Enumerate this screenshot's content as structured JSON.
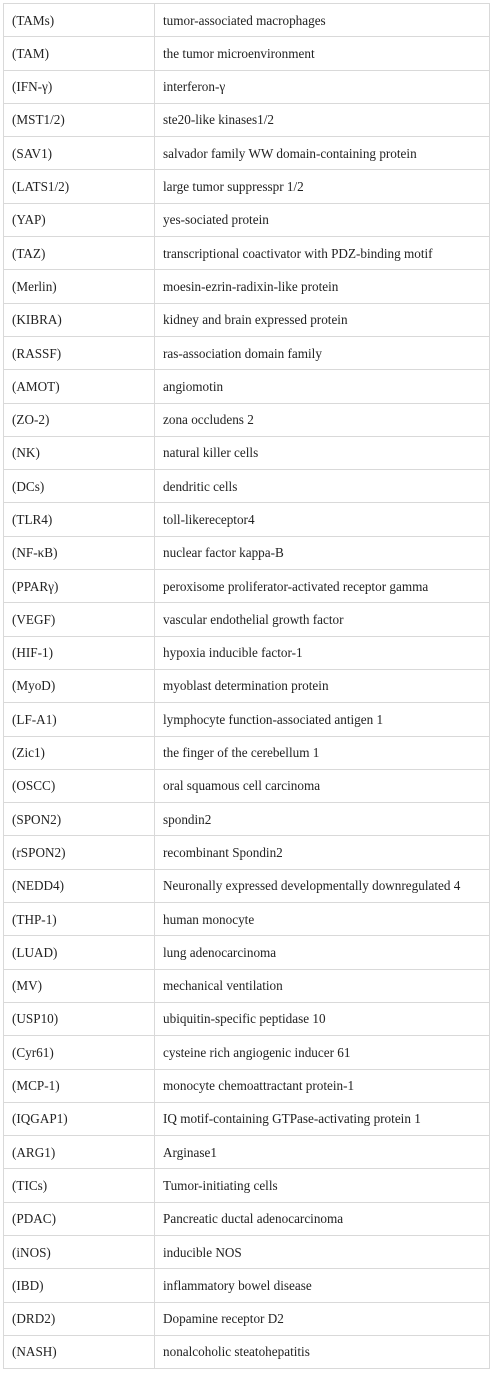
{
  "table": {
    "rows": [
      {
        "abbr": "(TAMs)",
        "definition": "tumor-associated macrophages"
      },
      {
        "abbr": "(TAM)",
        "definition": "the tumor microenvironment"
      },
      {
        "abbr": "(IFN-γ)",
        "definition": "interferon-γ"
      },
      {
        "abbr": "(MST1/2)",
        "definition": "ste20-like kinases1/2"
      },
      {
        "abbr": "(SAV1)",
        "definition": "salvador family WW domain-containing protein"
      },
      {
        "abbr": "(LATS1/2)",
        "definition": "large tumor suppresspr 1/2"
      },
      {
        "abbr": "(YAP)",
        "definition": "yes-sociated protein"
      },
      {
        "abbr": "(TAZ)",
        "definition": "transcriptional coactivator with PDZ-binding motif"
      },
      {
        "abbr": "(Merlin)",
        "definition": "moesin-ezrin-radixin-like protein"
      },
      {
        "abbr": "(KIBRA)",
        "definition": "kidney and brain expressed protein"
      },
      {
        "abbr": "(RASSF)",
        "definition": "ras-association domain family"
      },
      {
        "abbr": "(AMOT)",
        "definition": "angiomotin"
      },
      {
        "abbr": "(ZO-2)",
        "definition": "zona occludens 2"
      },
      {
        "abbr": "(NK)",
        "definition": "natural killer cells"
      },
      {
        "abbr": "(DCs)",
        "definition": "dendritic cells"
      },
      {
        "abbr": "(TLR4)",
        "definition": "toll-likereceptor4"
      },
      {
        "abbr": "(NF-κB)",
        "definition": "nuclear factor kappa-B"
      },
      {
        "abbr": "(PPARγ)",
        "definition": "peroxisome proliferator-activated receptor gamma"
      },
      {
        "abbr": "(VEGF)",
        "definition": "vascular endothelial growth factor"
      },
      {
        "abbr": "(HIF-1)",
        "definition": "hypoxia inducible factor-1"
      },
      {
        "abbr": "(MyoD)",
        "definition": "myoblast determination protein"
      },
      {
        "abbr": "(LF-A1)",
        "definition": "lymphocyte function-associated antigen 1"
      },
      {
        "abbr": "(Zic1)",
        "definition": "the finger of the cerebellum 1"
      },
      {
        "abbr": "(OSCC)",
        "definition": "oral squamous cell carcinoma"
      },
      {
        "abbr": "(SPON2)",
        "definition": "spondin2"
      },
      {
        "abbr": "(rSPON2)",
        "definition": "recombinant Spondin2"
      },
      {
        "abbr": "(NEDD4)",
        "definition": "Neuronally expressed developmentally downregulated 4"
      },
      {
        "abbr": "(THP-1)",
        "definition": "human monocyte"
      },
      {
        "abbr": "(LUAD)",
        "definition": "lung adenocarcinoma"
      },
      {
        "abbr": "(MV)",
        "definition": "mechanical ventilation"
      },
      {
        "abbr": "(USP10)",
        "definition": "ubiquitin-specific peptidase 10"
      },
      {
        "abbr": "(Cyr61)",
        "definition": "cysteine rich angiogenic inducer 61"
      },
      {
        "abbr": "(MCP-1)",
        "definition": "monocyte chemoattractant protein-1"
      },
      {
        "abbr": "(IQGAP1)",
        "definition": "IQ motif-containing GTPase-activating protein 1"
      },
      {
        "abbr": "(ARG1)",
        "definition": "Arginase1"
      },
      {
        "abbr": "(TICs)",
        "definition": "Tumor-initiating cells"
      },
      {
        "abbr": "(PDAC)",
        "definition": "Pancreatic ductal adenocarcinoma"
      },
      {
        "abbr": "(iNOS)",
        "definition": "inducible NOS"
      },
      {
        "abbr": "(IBD)",
        "definition": "inflammatory bowel disease"
      },
      {
        "abbr": "(DRD2)",
        "definition": "Dopamine receptor D2"
      },
      {
        "abbr": "(NASH)",
        "definition": "nonalcoholic steatohepatitis"
      }
    ]
  }
}
